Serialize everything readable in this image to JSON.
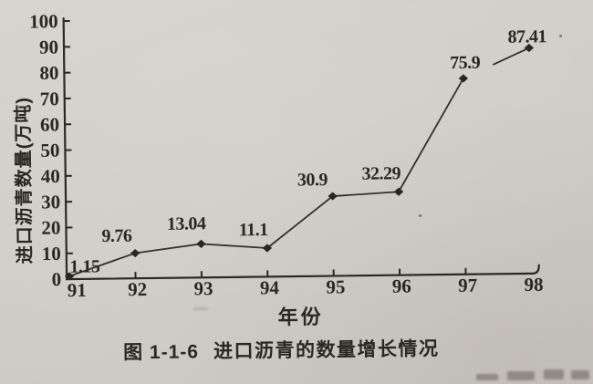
{
  "figure": {
    "caption_number": "图 1-1-6",
    "caption_title": "进口沥青的数量增长情况"
  },
  "chart_data": {
    "type": "line",
    "title": "",
    "xlabel": "年份",
    "ylabel": "进口沥青数量(万吨)",
    "categories": [
      "91",
      "92",
      "93",
      "94",
      "95",
      "96",
      "97",
      "98"
    ],
    "series": [
      {
        "name": "进口沥青数量",
        "values": [
          1.15,
          9.76,
          13.04,
          11.1,
          30.9,
          32.29,
          75.9,
          87.41
        ]
      }
    ],
    "data_labels": [
      "1.15",
      "9.76",
      "13.04",
      "11.1",
      "30.9",
      "32.29",
      "75.9",
      "87.41"
    ],
    "ylim": [
      0,
      100
    ],
    "y_ticks": [
      0,
      10,
      20,
      30,
      40,
      50,
      60,
      70,
      80,
      90,
      100
    ],
    "y_tick_labels": [
      "0",
      "10",
      "20",
      "30",
      "40",
      "50",
      "60",
      "70",
      "80",
      "90",
      "100"
    ],
    "grid": false,
    "legend_position": "none",
    "marker_shape": "diamond",
    "colors": {
      "ink": "#2b2823",
      "line": "#34302a",
      "paper": "#cfccc5"
    }
  }
}
